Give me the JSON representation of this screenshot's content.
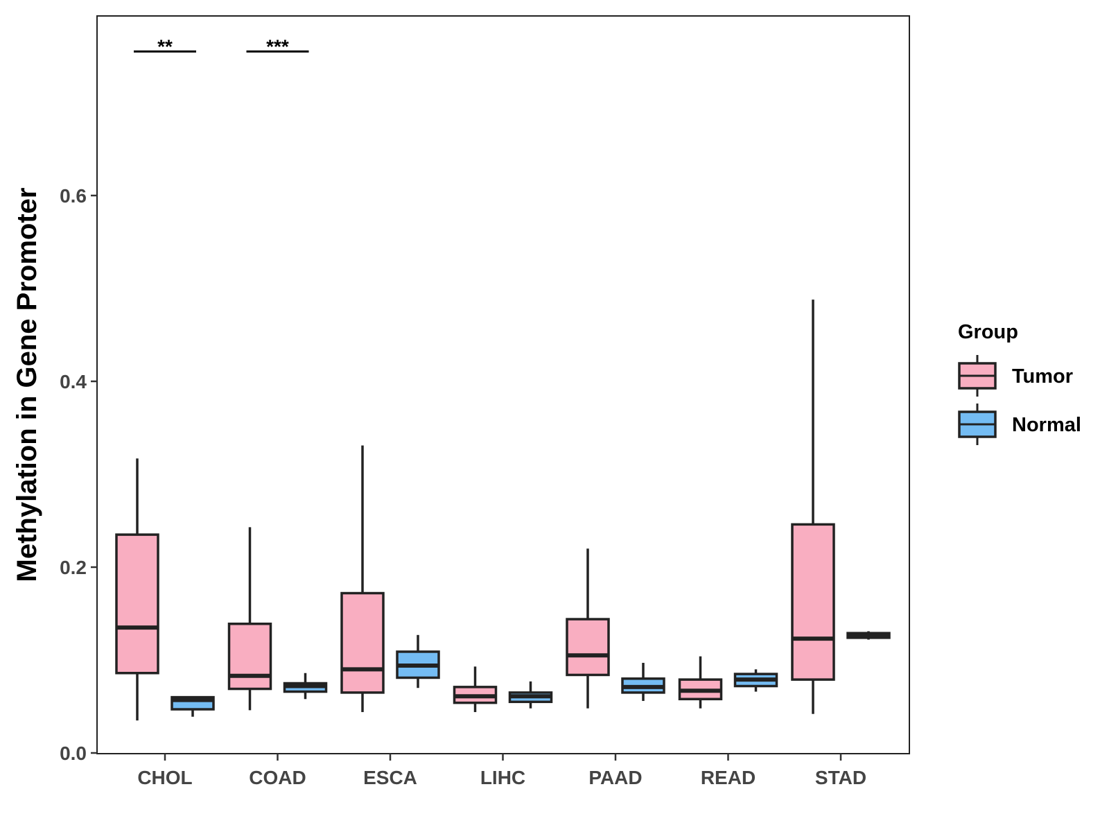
{
  "chart_data": {
    "type": "boxplot",
    "title": "",
    "xlabel": "",
    "ylabel": "Methylation in Gene Promoter",
    "ylim": [
      0,
      0.8
    ],
    "yticks": [
      0.0,
      0.2,
      0.4,
      0.6
    ],
    "ytick_labels": [
      "0.0",
      "0.2",
      "0.4",
      "0.6"
    ],
    "categories": [
      "CHOL",
      "COAD",
      "ESCA",
      "LIHC",
      "PAAD",
      "READ",
      "STAD"
    ],
    "legend": {
      "title": "Group",
      "position": "right",
      "entries": [
        {
          "name": "Tumor",
          "color": "#F9AEC1"
        },
        {
          "name": "Normal",
          "color": "#74BCF3"
        }
      ]
    },
    "series": [
      {
        "name": "Tumor",
        "color": "#F9AEC1",
        "boxes": [
          {
            "min": 0.035,
            "q1": 0.086,
            "median": 0.135,
            "q3": 0.235,
            "max": 0.317
          },
          {
            "min": 0.046,
            "q1": 0.069,
            "median": 0.083,
            "q3": 0.139,
            "max": 0.243
          },
          {
            "min": 0.044,
            "q1": 0.065,
            "median": 0.09,
            "q3": 0.172,
            "max": 0.331
          },
          {
            "min": 0.044,
            "q1": 0.054,
            "median": 0.061,
            "q3": 0.071,
            "max": 0.093
          },
          {
            "min": 0.048,
            "q1": 0.084,
            "median": 0.105,
            "q3": 0.144,
            "max": 0.22
          },
          {
            "min": 0.048,
            "q1": 0.058,
            "median": 0.067,
            "q3": 0.079,
            "max": 0.104
          },
          {
            "min": 0.042,
            "q1": 0.079,
            "median": 0.123,
            "q3": 0.246,
            "max": 0.488
          }
        ]
      },
      {
        "name": "Normal",
        "color": "#74BCF3",
        "boxes": [
          {
            "min": 0.039,
            "q1": 0.047,
            "median": 0.057,
            "q3": 0.06,
            "max": 0.061
          },
          {
            "min": 0.058,
            "q1": 0.066,
            "median": 0.072,
            "q3": 0.075,
            "max": 0.086
          },
          {
            "min": 0.07,
            "q1": 0.081,
            "median": 0.094,
            "q3": 0.109,
            "max": 0.127
          },
          {
            "min": 0.048,
            "q1": 0.055,
            "median": 0.061,
            "q3": 0.065,
            "max": 0.077
          },
          {
            "min": 0.056,
            "q1": 0.065,
            "median": 0.071,
            "q3": 0.08,
            "max": 0.097
          },
          {
            "min": 0.066,
            "q1": 0.072,
            "median": 0.079,
            "q3": 0.085,
            "max": 0.09
          },
          {
            "min": 0.122,
            "q1": 0.124,
            "median": 0.127,
            "q3": 0.129,
            "max": 0.131
          }
        ]
      }
    ],
    "annotations": [
      {
        "category": "CHOL",
        "text": "**",
        "y": 0.755
      },
      {
        "category": "COAD",
        "text": "***",
        "y": 0.755
      }
    ]
  }
}
